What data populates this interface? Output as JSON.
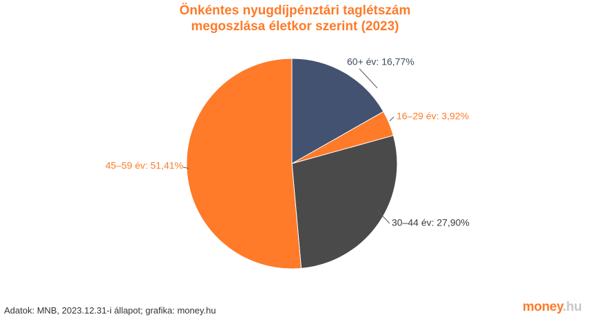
{
  "title_line1": "Önkéntes nyugdíjpénztári taglétszám",
  "title_line2": "megoszlása életkor szerint (2023)",
  "source": "Adatok: MNB, 2023.12.31-i állapot; grafika: money.hu",
  "logo": {
    "main": "money",
    "suffix": ".hu"
  },
  "colors": {
    "title": "#ff7a29",
    "slice_60plus": "#435270",
    "slice_16_29": "#ff7a29",
    "slice_30_44": "#4a4a4a",
    "slice_45_59": "#ff7a29"
  },
  "chart_data": {
    "type": "pie",
    "title": "Önkéntes nyugdíjpénztári taglétszám megoszlása életkor szerint (2023)",
    "slices": [
      {
        "label": "60+ év",
        "value": 16.77,
        "display": "60+ év: 16,77%",
        "color": "#435270",
        "label_color": "#3f4a60"
      },
      {
        "label": "16–29 év",
        "value": 3.92,
        "display": "16–29 év: 3,92%",
        "color": "#ff7a29",
        "label_color": "#ff7a29"
      },
      {
        "label": "30–44 év",
        "value": 27.9,
        "display": "30–44 év: 27,90%",
        "color": "#4a4a4a",
        "label_color": "#3a3a3a"
      },
      {
        "label": "45–59 év",
        "value": 51.41,
        "display": "45–59 év: 51,41%",
        "color": "#ff7a29",
        "label_color": "#ff7a29"
      }
    ]
  }
}
